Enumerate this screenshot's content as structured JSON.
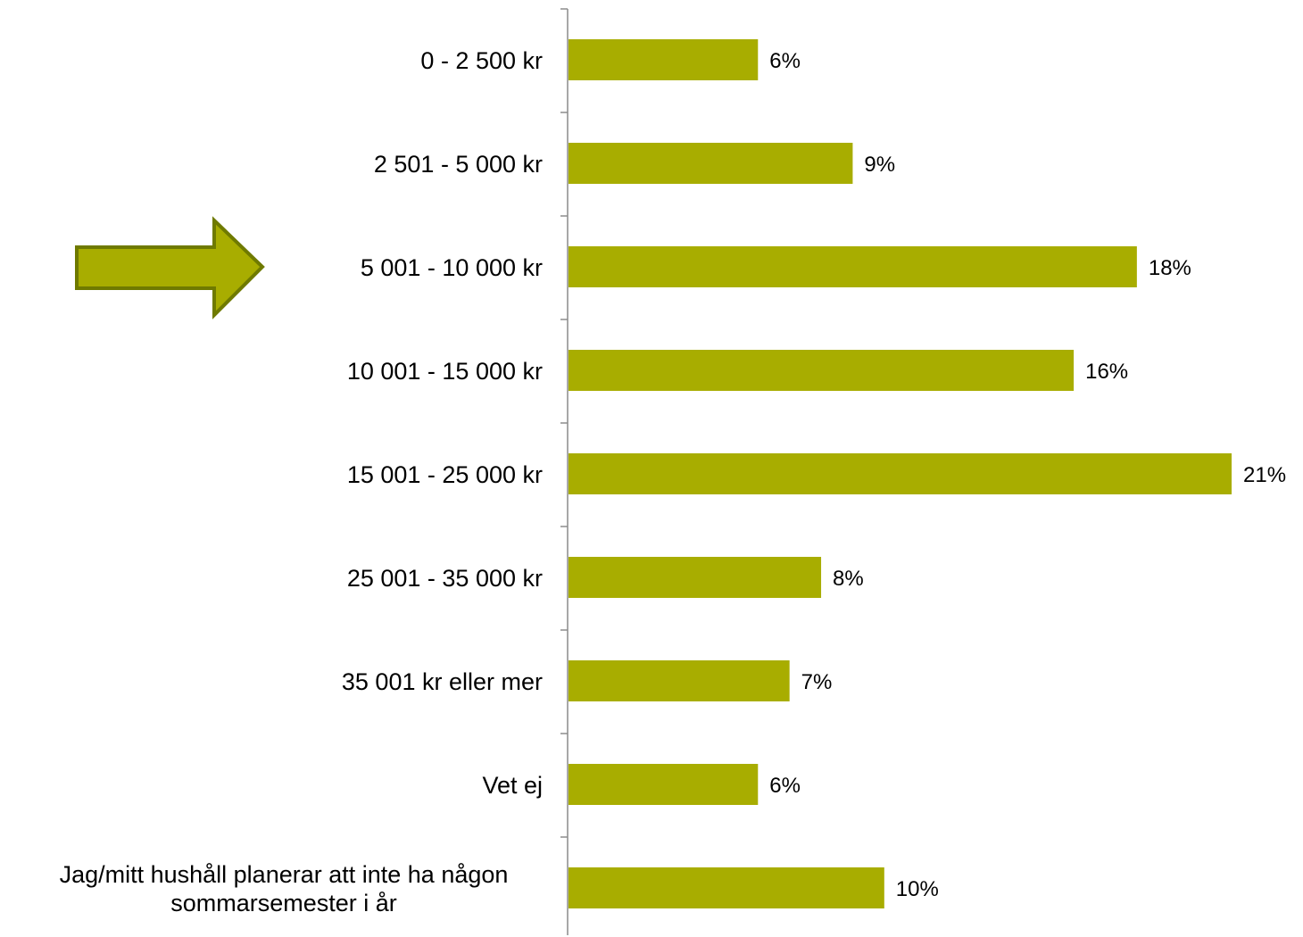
{
  "chart_data": {
    "type": "bar",
    "orientation": "horizontal",
    "categories": [
      "0 - 2 500 kr",
      "2 501 - 5 000 kr",
      "5 001 - 10 000 kr",
      "10 001 - 15 000 kr",
      "15 001 - 25 000 kr",
      "25 001 - 35 000 kr",
      "35 001 kr eller mer",
      "Vet ej",
      "Jag/mitt hushåll planerar att inte ha någon sommarsemester i år"
    ],
    "category_lines": [
      [
        "0 - 2 500 kr"
      ],
      [
        "2 501 - 5 000 kr"
      ],
      [
        "5 001 - 10 000 kr"
      ],
      [
        "10 001 - 15 000 kr"
      ],
      [
        "15 001 - 25 000 kr"
      ],
      [
        "25 001 - 35 000 kr"
      ],
      [
        "35 001 kr eller mer"
      ],
      [
        "Vet ej"
      ],
      [
        "Jag/mitt hushåll planerar att inte ha någon",
        "sommarsemester i år"
      ]
    ],
    "values": [
      6,
      9,
      18,
      16,
      21,
      8,
      7,
      6,
      10
    ],
    "value_labels": [
      "6%",
      "9%",
      "18%",
      "16%",
      "21%",
      "8%",
      "7%",
      "6%",
      "10%"
    ],
    "unit": "%",
    "xlim": [
      0,
      21
    ],
    "bar_color": "#a8ad00",
    "grid": false,
    "legend": "none",
    "highlight": {
      "category": "5 001 - 10 000 kr",
      "marker": "arrow-right",
      "fill": "#a8ad00",
      "stroke": "#6f7a00"
    }
  }
}
